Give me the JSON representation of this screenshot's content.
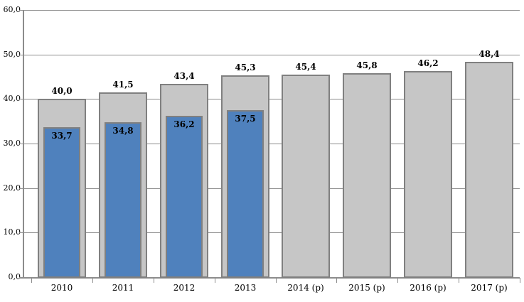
{
  "chart_data": {
    "type": "bar",
    "title": "",
    "xlabel": "",
    "ylabel": "",
    "categories": [
      "2010",
      "2011",
      "2012",
      "2013",
      "2014 (p)",
      "2015 (p)",
      "2016 (p)",
      "2017 (p)"
    ],
    "series": [
      {
        "name": "total-bar-series",
        "fill_color": "#C6C6C6",
        "border_color": "#808080",
        "values": [
          40.0,
          41.5,
          43.4,
          45.3,
          45.4,
          45.8,
          46.2,
          48.4
        ],
        "labels": [
          "40,0",
          "41,5",
          "43,4",
          "45,3",
          "45,4",
          "45,8",
          "46,2",
          "48,4"
        ]
      },
      {
        "name": "blue-bar-series",
        "fill_color": "#4F81BD",
        "border_color": "#808080",
        "values": [
          33.7,
          34.8,
          36.2,
          37.5,
          null,
          null,
          null,
          null
        ],
        "labels": [
          "33,7",
          "34,8",
          "36,2",
          "37,5",
          "",
          "",
          "",
          ""
        ]
      }
    ],
    "ylim": [
      0,
      60
    ],
    "ytick_step": 10,
    "ytick_labels": [
      "0,0",
      "10,0",
      "20,0",
      "30,0",
      "40,0",
      "50,0",
      "60,0"
    ],
    "grid": true,
    "legend": "none",
    "axis_color": "#8c8c8c",
    "background_color": "#FFFFFF"
  }
}
